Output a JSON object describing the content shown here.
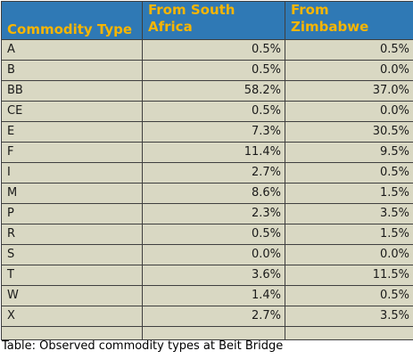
{
  "table": {
    "headers": [
      "Commodity Type",
      "From South Africa",
      "From Zimbabwe"
    ],
    "rows": [
      [
        "A",
        "0.5%",
        "0.5%"
      ],
      [
        "B",
        "0.5%",
        "0.0%"
      ],
      [
        "BB",
        "58.2%",
        "37.0%"
      ],
      [
        "CE",
        "0.5%",
        "0.0%"
      ],
      [
        "E",
        "7.3%",
        "30.5%"
      ],
      [
        "F",
        "11.4%",
        "9.5%"
      ],
      [
        "I",
        "2.7%",
        "0.5%"
      ],
      [
        "M",
        "8.6%",
        "1.5%"
      ],
      [
        "P",
        "2.3%",
        "3.5%"
      ],
      [
        "R",
        "0.5%",
        "1.5%"
      ],
      [
        "S",
        "0.0%",
        "0.0%"
      ],
      [
        "T",
        "3.6%",
        "11.5%"
      ],
      [
        "W",
        "1.4%",
        "0.5%"
      ],
      [
        "X",
        "2.7%",
        "3.5%"
      ]
    ]
  },
  "caption": "Table: Observed commodity types at Beit Bridge",
  "colors": {
    "header_background": "#2f79b5",
    "header_text": "#f7b500",
    "body_background": "#d9d8c3"
  }
}
